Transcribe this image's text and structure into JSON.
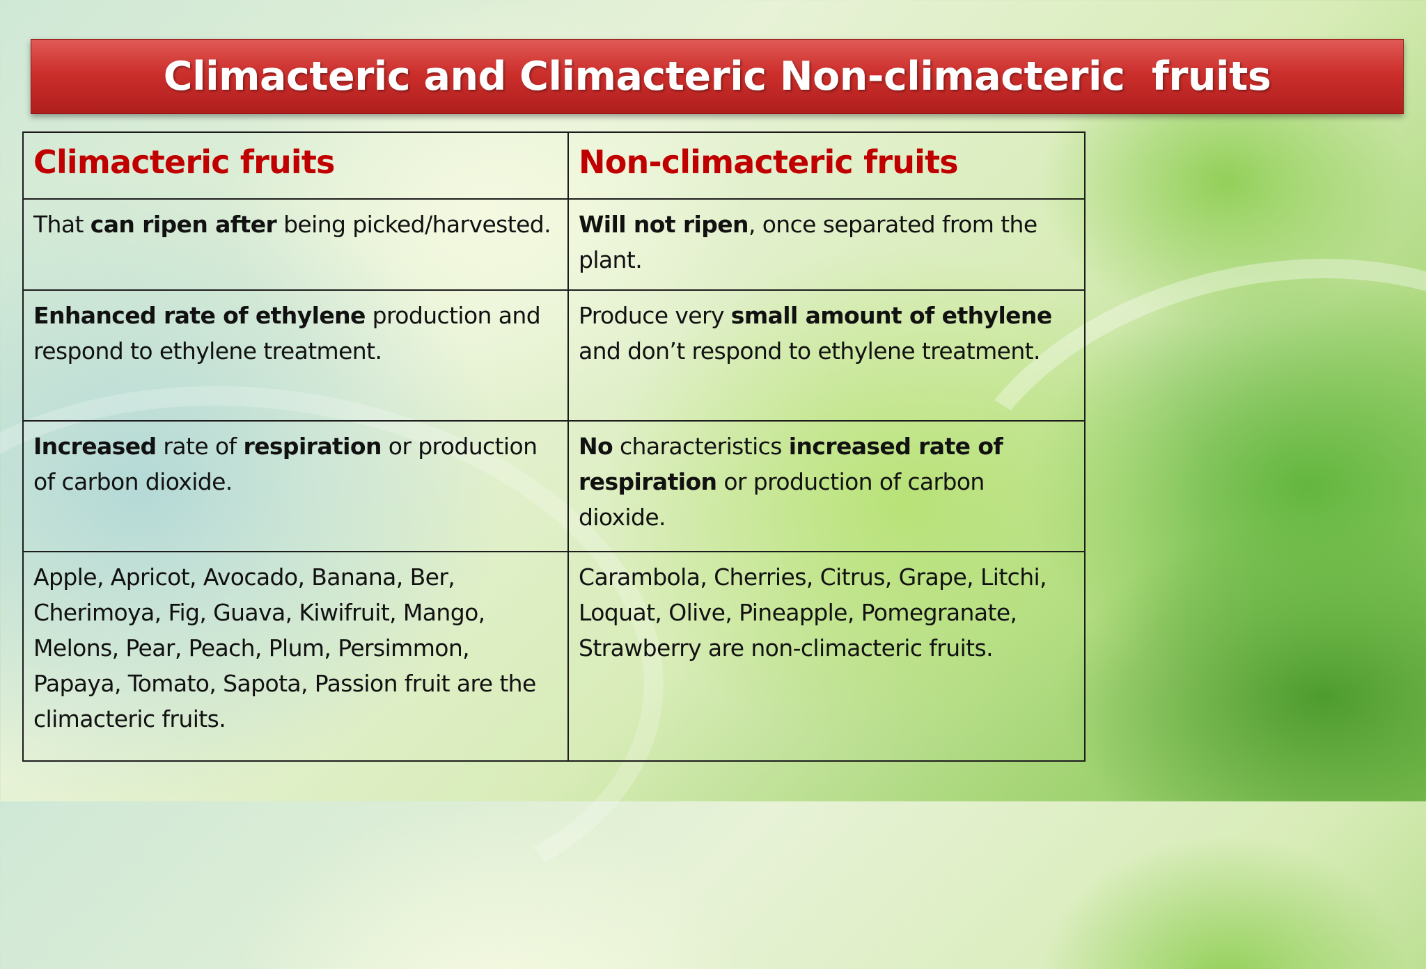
{
  "title": "Climacteric and Climacteric Non-climacteric  fruits",
  "table": {
    "headers": {
      "left": "Climacteric fruits",
      "right": "Non-climacteric fruits"
    },
    "rows": [
      {
        "left": {
          "t1": "That ",
          "b1": "can ripen  after",
          "t2": " being picked/harvested."
        },
        "right": {
          "b1": "Will not ripen",
          "t1": ", once separated from the plant."
        }
      },
      {
        "left": {
          "b1": "Enhanced rate of ethylene",
          "t1": " production and respond to ethylene treatment."
        },
        "right": {
          "t1": "Produce very ",
          "b1": "small amount of ethylene",
          "t2": " and don’t respond to ethylene treatment."
        }
      },
      {
        "left": {
          "b1": "Increased",
          "t1": " rate of ",
          "b2": "respiration",
          "t2": " or production of carbon dioxide."
        },
        "right": {
          "b1": "No",
          "t1": " characteristics ",
          "b2": "increased rate of respiration",
          "t2": " or production of carbon dioxide."
        }
      },
      {
        "left": {
          "t1": "Apple, Apricot, Avocado, Banana, Ber, Cherimoya, Fig, Guava, Kiwifruit, Mango, Melons, Pear, Peach, Plum, Persimmon, Papaya, Tomato, Sapota, Passion fruit are the climacteric fruits."
        },
        "right": {
          "t1": "Carambola, Cherries, Citrus, Grape, Litchi, Loquat, Olive, Pineapple, Pomegranate, Strawberry are non-climacteric fruits."
        }
      }
    ]
  }
}
